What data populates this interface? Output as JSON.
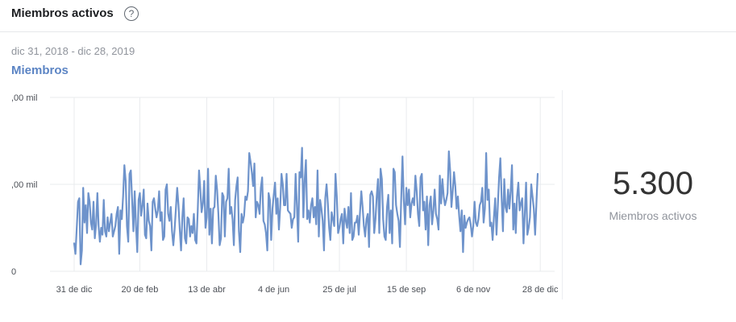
{
  "header": {
    "title": "Miembros activos",
    "help_icon": "help-icon",
    "help_glyph": "?"
  },
  "date_range": "dic 31, 2018 - dic 28, 2019",
  "metric_tab": "Miembros",
  "stat": {
    "value": "5.300",
    "label": "Miembros activos"
  },
  "colors": {
    "line": "#6e93cb",
    "grid": "#e9ebee",
    "tab": "#5b84c4"
  },
  "chart_data": {
    "type": "line",
    "title": "",
    "xlabel": "",
    "ylabel": "",
    "y_tick_labels": [
      ",00 mil",
      ",00 mil",
      "0"
    ],
    "y_ticks": [
      10000,
      5000,
      0
    ],
    "ylim": [
      0,
      10000
    ],
    "grid": true,
    "x_tick_labels": [
      "31 de dic",
      "20 de feb",
      "13 de abr",
      "4 de jun",
      "25 de jul",
      "15 de sep",
      "6 de nov",
      "28 de dic"
    ],
    "x_ticks": [
      0,
      51,
      103,
      155,
      206,
      258,
      310,
      362
    ],
    "series": [
      {
        "name": "",
        "values": [
          1600,
          1000,
          2500,
          4000,
          4200,
          400,
          1200,
          4800,
          2800,
          3800,
          2200,
          4500,
          4000,
          2800,
          2400,
          4000,
          1900,
          2700,
          4500,
          2600,
          1700,
          2500,
          2100,
          4100,
          2300,
          2000,
          3100,
          2300,
          2800,
          3300,
          2000,
          2300,
          2600,
          3300,
          3700,
          1000,
          3500,
          3000,
          4300,
          6100,
          5200,
          2600,
          1700,
          5600,
          5800,
          4100,
          2300,
          4600,
          2600,
          1100,
          4100,
          4500,
          3200,
          3800,
          4700,
          2100,
          1900,
          3900,
          2900,
          2600,
          1200,
          4000,
          4200,
          3600,
          3100,
          3500,
          4600,
          2900,
          3400,
          1800,
          2000,
          4700,
          5000,
          3300,
          2900,
          3700,
          2300,
          1500,
          2400,
          3600,
          4800,
          3800,
          2400,
          1200,
          3100,
          4200,
          1900,
          1600,
          3100,
          3000,
          2000,
          2600,
          2200,
          3300,
          1800,
          1600,
          3500,
          5800,
          4700,
          3400,
          3900,
          5200,
          2500,
          3100,
          5900,
          2100,
          3600,
          1600,
          3600,
          3700,
          5500,
          4700,
          3300,
          1500,
          1900,
          4500,
          4300,
          2000,
          4000,
          4200,
          5900,
          3300,
          3700,
          3000,
          1500,
          4100,
          4900,
          5400,
          2300,
          1100,
          3300,
          2800,
          3200,
          4300,
          4100,
          4600,
          6800,
          6300,
          5700,
          4900,
          6200,
          3100,
          4000,
          3800,
          3300,
          4800,
          5400,
          2900,
          2700,
          2200,
          1200,
          4500,
          4100,
          1800,
          3600,
          4400,
          5100,
          3300,
          4200,
          2400,
          3700,
          5600,
          5000,
          3800,
          3800,
          5600,
          3500,
          3400,
          3300,
          2500,
          3000,
          3100,
          5600,
          3800,
          1700,
          5700,
          5400,
          7100,
          3100,
          5200,
          6400,
          3000,
          3500,
          2800,
          3800,
          4200,
          3100,
          3700,
          2700,
          5800,
          2000,
          4100,
          3600,
          2900,
          1200,
          4200,
          5000,
          3900,
          2500,
          1800,
          3400,
          3000,
          2600,
          5600,
          4300,
          2200,
          2500,
          3000,
          3300,
          1600,
          3600,
          2900,
          2500,
          3700,
          2200,
          4500,
          1800,
          2000,
          2800,
          2800,
          3200,
          2100,
          3400,
          4600,
          3700,
          2600,
          2000,
          3000,
          3300,
          1400,
          4400,
          4600,
          4300,
          2200,
          3000,
          4300,
          5300,
          2200,
          5900,
          5300,
          3000,
          2000,
          1800,
          3700,
          4400,
          2200,
          3500,
          1600,
          5900,
          5700,
          3800,
          3300,
          2900,
          1400,
          4200,
          6600,
          4100,
          2700,
          4800,
          3800,
          4700,
          3100,
          3900,
          4200,
          3800,
          5500,
          4600,
          3300,
          2600,
          5400,
          5600,
          3500,
          4000,
          2400,
          4300,
          1500,
          3800,
          4300,
          2700,
          3500,
          4700,
          3300,
          3000,
          2400,
          5500,
          3900,
          5300,
          4300,
          3800,
          4100,
          4500,
          6900,
          5800,
          3700,
          4600,
          5700,
          4900,
          3600,
          4300,
          3200,
          2300,
          3500,
          1100,
          3200,
          2500,
          2800,
          3000,
          3100,
          2700,
          2000,
          2600,
          4000,
          2800,
          2600,
          3000,
          3800,
          4000,
          4800,
          2800,
          3600,
          6800,
          4100,
          4700,
          2600,
          2800,
          1800,
          3100,
          4200,
          2100,
          3700,
          5400,
          6500,
          4200,
          2300,
          5300,
          3700,
          3400,
          4700,
          3600,
          4600,
          6100,
          2400,
          3900,
          2200,
          4300,
          5100,
          3500,
          3900,
          4200,
          1600,
          3300,
          5100,
          2100,
          2500,
          3100,
          5000,
          4300,
          3600,
          2100,
          3900,
          5600
        ]
      }
    ]
  }
}
